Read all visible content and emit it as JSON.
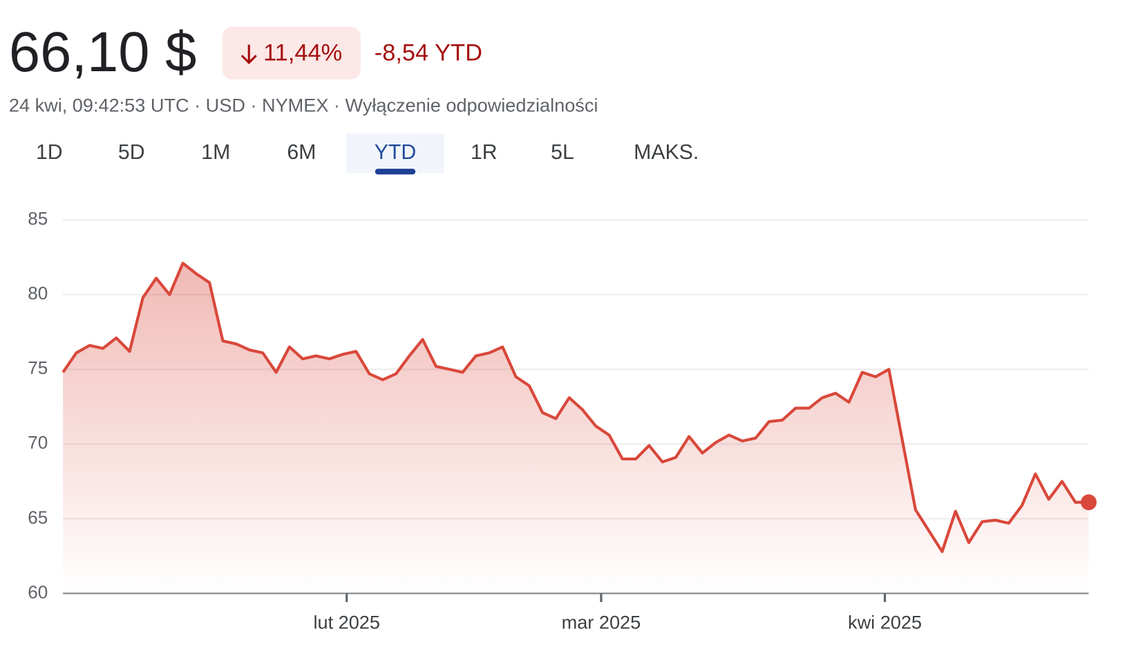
{
  "header": {
    "price": "66,10 $",
    "change_percent": "11,44%",
    "ytd_change": "-8,54 YTD",
    "meta": "24 kwi, 09:42:53 UTC · USD · NYMEX · Wyłączenie odpowiedzialności"
  },
  "tabs": {
    "items": [
      "1D",
      "5D",
      "1M",
      "6M",
      "YTD",
      "1R",
      "5L",
      "MAKS."
    ],
    "selected": 4
  },
  "chart_data": {
    "type": "line",
    "color": "#d9483b",
    "grid": true,
    "x": [
      0,
      1,
      2,
      3,
      4,
      5,
      6,
      7,
      8,
      9,
      10,
      11,
      12,
      13,
      14,
      15,
      16,
      17,
      18,
      19,
      20,
      21,
      22,
      23,
      24,
      25,
      26,
      27,
      28,
      29,
      30,
      31,
      32,
      33,
      34,
      35,
      36,
      37,
      38,
      39,
      40,
      41,
      42,
      43,
      44,
      45,
      46,
      47,
      48,
      49,
      50,
      51,
      52,
      53,
      54,
      55,
      56,
      57,
      58,
      59,
      60,
      61,
      62,
      63,
      64,
      65,
      66,
      67,
      68,
      69,
      70,
      71,
      72,
      73,
      74,
      75,
      76,
      77
    ],
    "series": [
      {
        "color": "#d9483b",
        "values": [
          74.8,
          76.1,
          76.6,
          76.4,
          77.1,
          76.2,
          79.8,
          81.1,
          80.0,
          82.1,
          81.4,
          80.8,
          76.9,
          76.7,
          76.3,
          76.1,
          74.8,
          76.5,
          75.7,
          75.9,
          75.7,
          76.0,
          76.2,
          74.7,
          74.3,
          74.7,
          75.9,
          77.0,
          75.2,
          75.0,
          74.8,
          75.9,
          76.1,
          76.5,
          74.5,
          73.9,
          72.1,
          71.7,
          73.1,
          72.3,
          71.2,
          70.6,
          69.0,
          69.0,
          69.9,
          68.8,
          69.1,
          70.5,
          69.4,
          70.1,
          70.6,
          70.2,
          70.4,
          71.5,
          71.6,
          72.4,
          72.4,
          73.1,
          73.4,
          72.8,
          74.8,
          74.5,
          75.0,
          70.3,
          65.6,
          64.2,
          62.8,
          65.5,
          63.4,
          64.8,
          64.9,
          64.7,
          65.9,
          68.0,
          66.3,
          67.5,
          66.1,
          66.1
        ]
      }
    ],
    "xlim": [
      0,
      77
    ],
    "xticks": [
      {
        "value": 21.3,
        "label": "lut 2025"
      },
      {
        "value": 40.4,
        "label": "mar 2025"
      },
      {
        "value": 61.7,
        "label": "kwi 2025"
      }
    ],
    "ylim": [
      60,
      85
    ],
    "yticks": [
      60,
      65,
      70,
      75,
      80,
      85
    ]
  }
}
